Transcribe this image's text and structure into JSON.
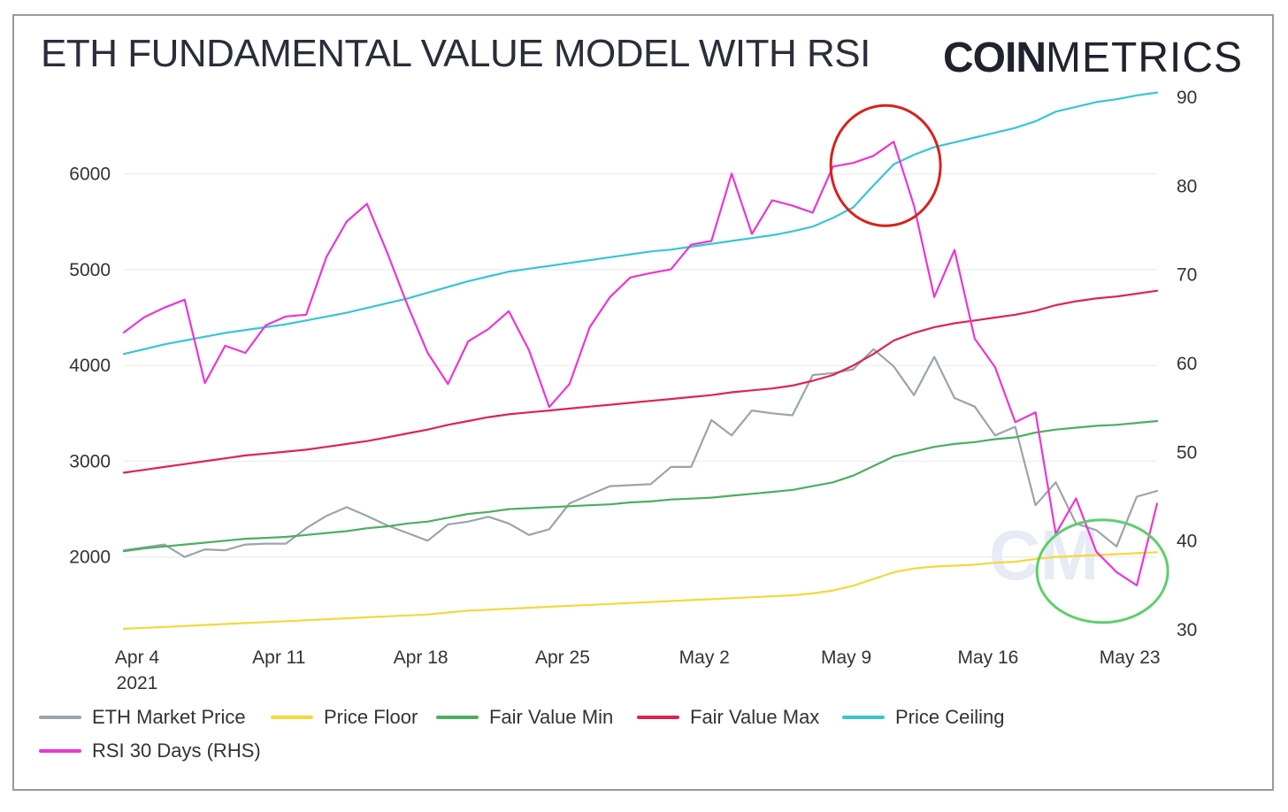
{
  "title": "ETH FUNDAMENTAL VALUE MODEL WITH RSI",
  "brand": {
    "bold": "COIN",
    "light": "METRICS"
  },
  "chart_data": {
    "type": "line",
    "x_start": "2021-04-04",
    "x_ticks": [
      "Apr 4",
      "Apr 11",
      "Apr 18",
      "Apr 25",
      "May 2",
      "May 9",
      "May 16",
      "May 23"
    ],
    "x_tick_sub": "2021",
    "y_left_ticks": [
      2000,
      3000,
      4000,
      5000,
      6000
    ],
    "y_left_lim": [
      1240,
      6800
    ],
    "y_right_ticks": [
      30,
      40,
      50,
      60,
      70,
      80,
      90
    ],
    "y_right_lim": [
      30,
      90
    ],
    "grid": "horizontal",
    "legend_position": "bottom",
    "series": [
      {
        "name": "ETH Market Price",
        "axis": "left",
        "color": "#9aa4ad",
        "values": [
          2070,
          2100,
          2130,
          2000,
          2080,
          2070,
          2130,
          2140,
          2140,
          2300,
          2430,
          2520,
          2430,
          2330,
          2250,
          2170,
          2340,
          2370,
          2420,
          2350,
          2230,
          2290,
          2560,
          2650,
          2740,
          2750,
          2760,
          2940,
          2940,
          3430,
          3270,
          3530,
          3500,
          3480,
          3900,
          3920,
          3960,
          4170,
          3990,
          3690,
          4090,
          3660,
          3570,
          3270,
          3360,
          2540,
          2780,
          2350,
          2280,
          2110,
          2630,
          2690
        ]
      },
      {
        "name": "Price Floor",
        "axis": "left",
        "color": "#f5d83a",
        "values": [
          1250,
          1260,
          1270,
          1280,
          1290,
          1300,
          1310,
          1320,
          1330,
          1340,
          1350,
          1360,
          1370,
          1380,
          1390,
          1400,
          1420,
          1440,
          1450,
          1460,
          1470,
          1480,
          1490,
          1500,
          1510,
          1520,
          1530,
          1540,
          1550,
          1560,
          1570,
          1580,
          1590,
          1600,
          1620,
          1650,
          1700,
          1770,
          1840,
          1880,
          1900,
          1910,
          1920,
          1940,
          1950,
          1980,
          2000,
          2010,
          2020,
          2030,
          2040,
          2050
        ]
      },
      {
        "name": "Fair Value Min",
        "axis": "left",
        "color": "#4caf5f",
        "values": [
          2060,
          2090,
          2110,
          2130,
          2150,
          2170,
          2190,
          2200,
          2210,
          2230,
          2250,
          2270,
          2300,
          2320,
          2350,
          2370,
          2410,
          2450,
          2470,
          2500,
          2510,
          2520,
          2530,
          2540,
          2550,
          2570,
          2580,
          2600,
          2610,
          2620,
          2640,
          2660,
          2680,
          2700,
          2740,
          2780,
          2850,
          2950,
          3050,
          3100,
          3150,
          3180,
          3200,
          3230,
          3250,
          3300,
          3330,
          3350,
          3370,
          3380,
          3400,
          3420
        ]
      },
      {
        "name": "Fair Value Max",
        "axis": "left",
        "color": "#e0234f",
        "values": [
          2880,
          2910,
          2940,
          2970,
          3000,
          3030,
          3060,
          3080,
          3100,
          3120,
          3150,
          3180,
          3210,
          3250,
          3290,
          3330,
          3380,
          3420,
          3460,
          3490,
          3510,
          3530,
          3550,
          3570,
          3590,
          3610,
          3630,
          3650,
          3670,
          3690,
          3720,
          3740,
          3760,
          3790,
          3840,
          3900,
          4000,
          4120,
          4260,
          4340,
          4400,
          4440,
          4470,
          4500,
          4530,
          4570,
          4630,
          4670,
          4700,
          4720,
          4750,
          4780
        ]
      },
      {
        "name": "Price Ceiling",
        "axis": "left",
        "color": "#38c5d4",
        "values": [
          4120,
          4170,
          4220,
          4260,
          4300,
          4340,
          4370,
          4400,
          4430,
          4470,
          4510,
          4550,
          4600,
          4650,
          4700,
          4760,
          4820,
          4880,
          4930,
          4980,
          5010,
          5040,
          5070,
          5100,
          5130,
          5160,
          5190,
          5210,
          5240,
          5270,
          5300,
          5330,
          5360,
          5400,
          5450,
          5540,
          5650,
          5880,
          6100,
          6200,
          6280,
          6330,
          6380,
          6430,
          6480,
          6550,
          6650,
          6700,
          6750,
          6780,
          6820,
          6850
        ]
      },
      {
        "name": "RSI 30 Days (RHS)",
        "axis": "right",
        "color": "#ec35d6",
        "values": [
          63.5,
          65.2,
          66.3,
          67.2,
          57.8,
          62.0,
          61.2,
          64.3,
          65.3,
          65.5,
          72.0,
          76.0,
          78.0,
          72.5,
          66.6,
          61.2,
          57.7,
          62.5,
          63.9,
          65.9,
          61.5,
          55.1,
          57.7,
          64.1,
          67.5,
          69.7,
          70.2,
          70.6,
          73.4,
          73.8,
          81.4,
          74.6,
          78.4,
          77.8,
          77.0,
          82.2,
          82.6,
          83.4,
          85.0,
          77.8,
          67.5,
          72.8,
          62.8,
          59.6,
          53.4,
          54.5,
          40.8,
          44.8,
          38.8,
          36.5,
          35.0,
          44.2
        ]
      }
    ]
  },
  "legend": [
    {
      "label": "ETH Market Price",
      "color": "#9aa4ad"
    },
    {
      "label": "Price Floor",
      "color": "#f5d83a"
    },
    {
      "label": "Fair Value Min",
      "color": "#4caf5f"
    },
    {
      "label": "Fair Value Max",
      "color": "#e0234f"
    },
    {
      "label": "Price Ceiling",
      "color": "#38c5d4"
    },
    {
      "label": "RSI 30 Days (RHS)",
      "color": "#ec35d6"
    }
  ],
  "annotations": [
    {
      "shape": "ellipse",
      "color": "#d8221c",
      "note": "RSI peak near May 10"
    },
    {
      "shape": "ellipse",
      "color": "#5ecf6a",
      "note": "RSI trough near May 22"
    }
  ]
}
